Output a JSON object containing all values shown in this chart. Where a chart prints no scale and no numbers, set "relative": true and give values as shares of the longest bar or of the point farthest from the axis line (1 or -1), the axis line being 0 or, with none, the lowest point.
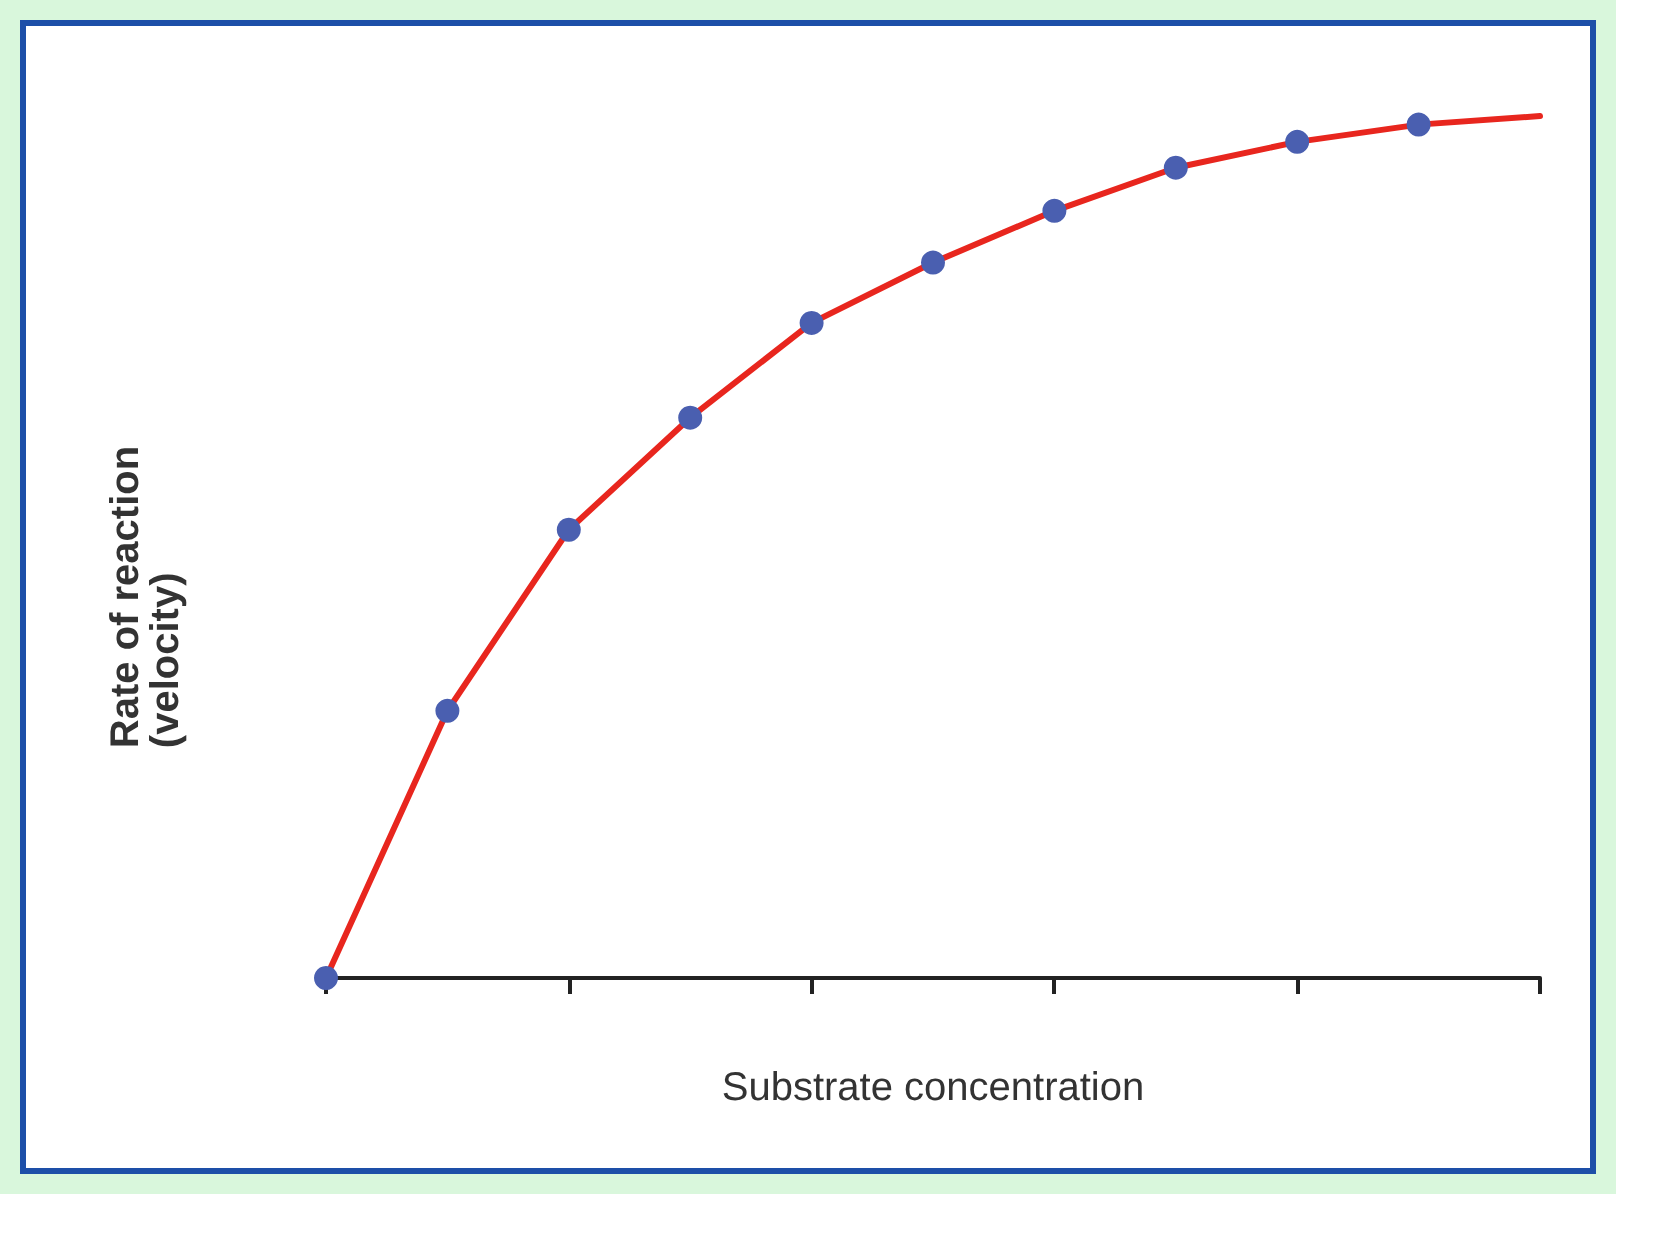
{
  "chart_data": {
    "type": "line",
    "relative": true,
    "xlabel": "Substrate concentration",
    "ylabel": "Rate of reaction\n(velocity)",
    "categories": [
      null,
      null,
      null,
      null,
      null,
      null,
      null,
      null,
      null,
      null,
      null
    ],
    "series": [
      {
        "color": "#e8261e",
        "colors": [
          "#4a5fb0",
          "#4a5fb0",
          "#4a5fb0",
          "#4a5fb0",
          "#4a5fb0",
          "#4a5fb0",
          "#4a5fb0",
          "#4a5fb0",
          "#4a5fb0",
          "#4a5fb0",
          null
        ],
        "values": [
          0,
          0.31,
          0.52,
          0.65,
          0.76,
          0.83,
          0.89,
          0.94,
          0.97,
          0.99,
          1.0
        ]
      }
    ],
    "marker": "circle",
    "grid": false
  }
}
